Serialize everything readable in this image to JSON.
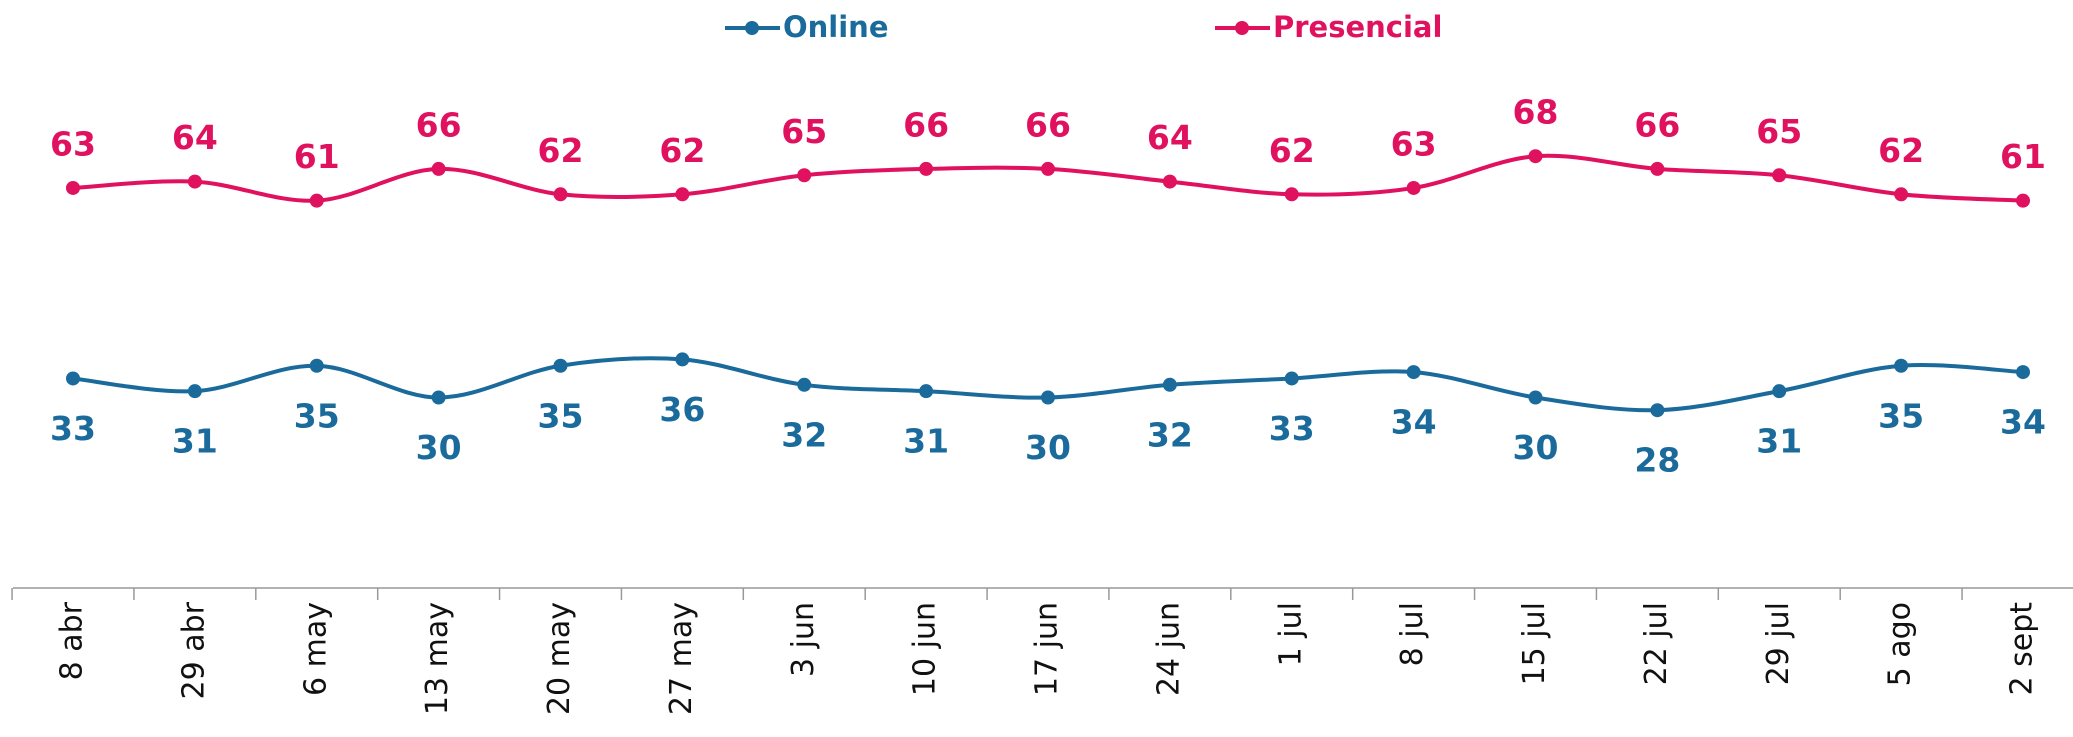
{
  "chart_data": {
    "type": "line",
    "categories": [
      "8 abr",
      "29 abr",
      "6 may",
      "13 may",
      "20 may",
      "27 may",
      "3 jun",
      "10 jun",
      "17 jun",
      "24 jun",
      "1 jul",
      "8 jul",
      "15 jul",
      "22 jul",
      "29 jul",
      "5 ago",
      "2 sept"
    ],
    "series": [
      {
        "name": "Online",
        "color": "#1a6b9c",
        "values": [
          33,
          31,
          35,
          30,
          35,
          36,
          32,
          31,
          30,
          32,
          33,
          34,
          30,
          28,
          31,
          35,
          34
        ]
      },
      {
        "name": "Presencial",
        "color": "#e0115f",
        "values": [
          63,
          64,
          61,
          66,
          62,
          62,
          65,
          66,
          66,
          64,
          62,
          63,
          68,
          66,
          65,
          62,
          61
        ]
      }
    ],
    "legend": "top"
  }
}
